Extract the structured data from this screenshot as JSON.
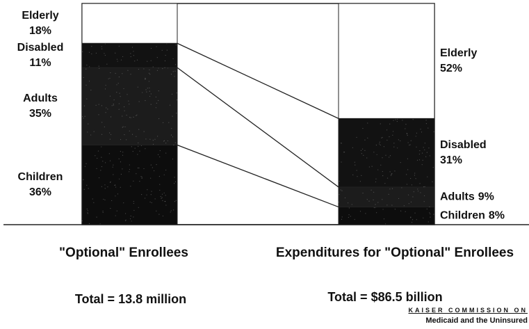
{
  "chart_data": {
    "type": "bar",
    "stacked": true,
    "categories": [
      "\"Optional\" Enrollees",
      "Expenditures for \"Optional\" Enrollees"
    ],
    "totals": [
      "Total = 13.8 million",
      "Total = $86.5 billion"
    ],
    "ylim": [
      0,
      100
    ],
    "series": [
      {
        "name": "Children",
        "color": "#0d0d0d",
        "values": [
          36,
          8
        ],
        "value_labels": [
          "36%",
          "8%"
        ]
      },
      {
        "name": "Adults",
        "color": "#1c1c1c",
        "values": [
          35,
          9
        ],
        "value_labels": [
          "35%",
          "9%"
        ]
      },
      {
        "name": "Disabled",
        "color": "#121212",
        "values": [
          11,
          31
        ],
        "value_labels": [
          "11%",
          "31%"
        ]
      },
      {
        "name": "Elderly",
        "color": "#ffffff",
        "values": [
          18,
          52
        ],
        "value_labels": [
          "18%",
          "52%"
        ]
      }
    ],
    "source": [
      "KAISER COMMISSION ON",
      "Medicaid and the Uninsured"
    ]
  }
}
